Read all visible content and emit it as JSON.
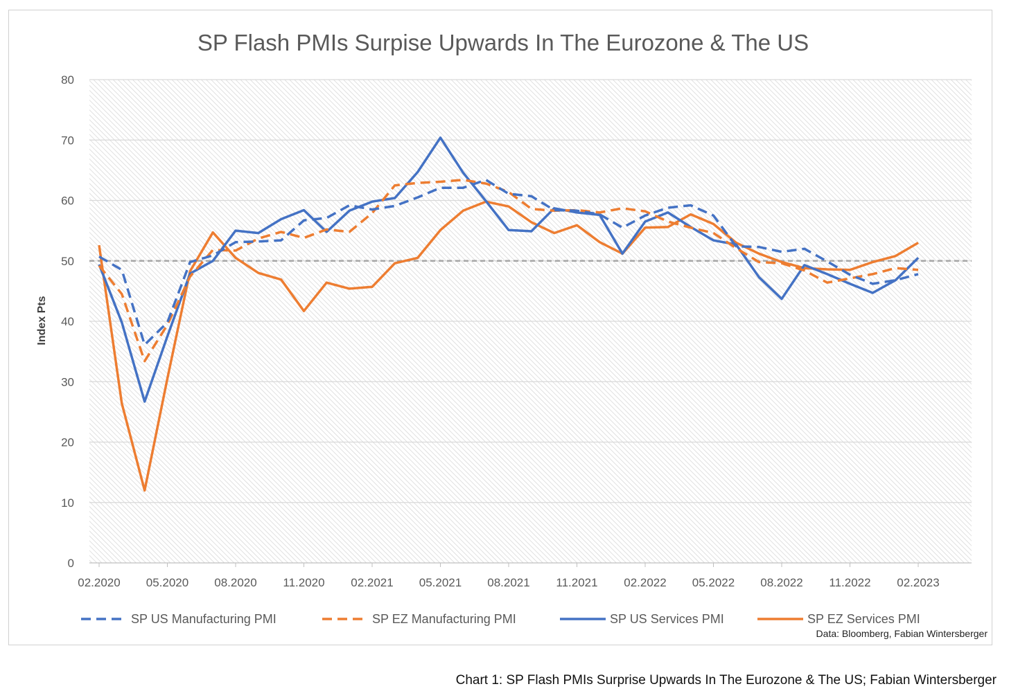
{
  "caption": "Chart 1: SP Flash PMIs Surprise Upwards In The Eurozone & The US; Fabian Wintersberger",
  "source": "Data: Bloomberg, Fabian Wintersberger",
  "chart_data": {
    "type": "line",
    "title": "SP Flash PMIs Surpise Upwards In The Eurozone & The US",
    "xlabel": "",
    "ylabel": "Index Pts",
    "ylim": [
      0,
      80
    ],
    "yticks": [
      0,
      10,
      20,
      30,
      40,
      50,
      60,
      70,
      80
    ],
    "xtick_labels": [
      "02.2020",
      "05.2020",
      "08.2020",
      "11.2020",
      "02.2021",
      "05.2021",
      "08.2021",
      "11.2021",
      "02.2022",
      "05.2022",
      "08.2022",
      "11.2022",
      "02.2023"
    ],
    "reference_line": 50,
    "grid": true,
    "legend_position": "bottom",
    "x": [
      "02.2020",
      "03.2020",
      "04.2020",
      "05.2020",
      "06.2020",
      "07.2020",
      "08.2020",
      "09.2020",
      "10.2020",
      "11.2020",
      "12.2020",
      "01.2021",
      "02.2021",
      "03.2021",
      "04.2021",
      "05.2021",
      "06.2021",
      "07.2021",
      "08.2021",
      "09.2021",
      "10.2021",
      "11.2021",
      "12.2021",
      "01.2022",
      "02.2022",
      "03.2022",
      "04.2022",
      "05.2022",
      "06.2022",
      "07.2022",
      "08.2022",
      "09.2022",
      "10.2022",
      "11.2022",
      "12.2022",
      "01.2023",
      "02.2023"
    ],
    "series": [
      {
        "name": "SP US Manufacturing PMI",
        "color": "#4472C4",
        "dash": true,
        "values": [
          50.7,
          48.5,
          36.1,
          39.8,
          49.8,
          50.9,
          53.1,
          53.2,
          53.4,
          56.7,
          57.1,
          59.2,
          58.5,
          59.1,
          60.5,
          62.1,
          62.1,
          63.4,
          61.1,
          60.7,
          58.4,
          58.3,
          57.7,
          55.5,
          57.5,
          58.8,
          59.2,
          57.5,
          52.4,
          52.3,
          51.5,
          52.0,
          49.9,
          47.7,
          46.2,
          46.8,
          47.8
        ]
      },
      {
        "name": "SP EZ Manufacturing PMI",
        "color": "#ED7D31",
        "dash": true,
        "values": [
          49.2,
          44.5,
          33.4,
          39.4,
          47.4,
          51.8,
          51.7,
          53.7,
          54.8,
          53.8,
          55.2,
          54.8,
          57.9,
          62.5,
          62.9,
          63.1,
          63.4,
          62.8,
          61.4,
          58.6,
          58.3,
          58.4,
          58.0,
          58.7,
          58.2,
          56.5,
          55.5,
          54.6,
          52.1,
          49.8,
          49.6,
          48.4,
          46.4,
          47.1,
          47.8,
          48.8,
          48.5
        ]
      },
      {
        "name": "SP US Services PMI",
        "color": "#4472C4",
        "dash": false,
        "values": [
          49.4,
          39.8,
          26.7,
          37.5,
          47.9,
          50.0,
          55.0,
          54.6,
          56.9,
          58.4,
          54.8,
          58.3,
          59.8,
          60.4,
          64.7,
          70.4,
          64.6,
          59.9,
          55.1,
          54.9,
          58.7,
          58.0,
          57.6,
          51.2,
          56.5,
          58.0,
          55.6,
          53.4,
          52.7,
          47.3,
          43.7,
          49.3,
          47.8,
          46.2,
          44.7,
          46.8,
          50.5
        ]
      },
      {
        "name": "SP EZ Services PMI",
        "color": "#ED7D31",
        "dash": false,
        "values": [
          52.6,
          26.4,
          12.0,
          30.5,
          48.3,
          54.7,
          50.5,
          48.0,
          46.9,
          41.7,
          46.4,
          45.4,
          45.7,
          49.6,
          50.5,
          55.1,
          58.3,
          59.8,
          59.0,
          56.4,
          54.6,
          55.9,
          53.1,
          51.2,
          55.5,
          55.6,
          57.7,
          56.1,
          53.0,
          51.2,
          49.8,
          48.8,
          48.6,
          48.5,
          49.8,
          50.8,
          53.0
        ]
      }
    ]
  }
}
